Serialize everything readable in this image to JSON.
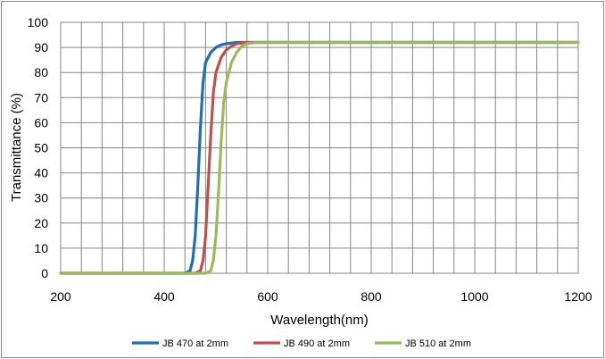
{
  "chart_data": {
    "type": "line",
    "title": "",
    "xlabel": "Wavelength(nm)",
    "ylabel": "Transmittance (%)",
    "xlim": [
      200,
      1200
    ],
    "ylim": [
      0,
      100
    ],
    "xticks": [
      "200",
      "400",
      "600",
      "800",
      "1000",
      "1200"
    ],
    "yticks": [
      "0",
      "10",
      "20",
      "30",
      "40",
      "50",
      "60",
      "70",
      "80",
      "90",
      "100"
    ],
    "grid": true,
    "legend_position": "bottom",
    "series": [
      {
        "name": "JB 470 at 2mm",
        "color": "#1f6fb4",
        "x": [
          200,
          440,
          450,
          455,
          460,
          465,
          470,
          475,
          480,
          490,
          500,
          510,
          520,
          540,
          560,
          600,
          800,
          1000,
          1200
        ],
        "y": [
          0,
          0,
          1,
          5,
          15,
          35,
          58,
          76,
          84,
          88,
          90,
          91,
          91.5,
          92,
          92,
          92,
          92,
          92,
          92
        ]
      },
      {
        "name": "JB 490 at 2mm",
        "color": "#c0504d",
        "x": [
          200,
          460,
          470,
          475,
          480,
          485,
          490,
          495,
          500,
          510,
          520,
          530,
          540,
          560,
          580,
          600,
          800,
          1000,
          1200
        ],
        "y": [
          0,
          0,
          1,
          5,
          15,
          35,
          55,
          72,
          80,
          86,
          89,
          90.5,
          91.5,
          92,
          92,
          92,
          92,
          92,
          92
        ]
      },
      {
        "name": "JB 510 at 2mm",
        "color": "#9bbb59",
        "x": [
          200,
          480,
          490,
          495,
          500,
          505,
          510,
          515,
          520,
          530,
          540,
          550,
          560,
          580,
          600,
          800,
          1000,
          1200
        ],
        "y": [
          0,
          0,
          1,
          5,
          15,
          32,
          52,
          68,
          76,
          84,
          88,
          90.5,
          91.5,
          92,
          92,
          92,
          92,
          92
        ]
      }
    ]
  }
}
